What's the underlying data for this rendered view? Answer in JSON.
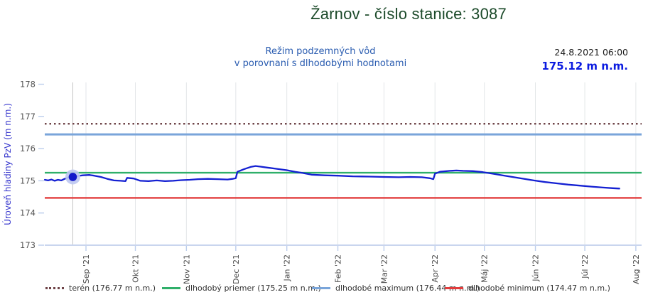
{
  "header": {
    "title": "Žarnov - číslo stanice: 3087",
    "subtitle_line1": "Režim podzemných vôd",
    "subtitle_line2": "v porovnaní s dlhodobými hodnotami",
    "selected_date": "24.8.2021 06:00",
    "selected_value": "175.12 m n.m."
  },
  "chart_data": {
    "type": "line",
    "title": "Žarnov - číslo stanice: 3087",
    "xlabel": "",
    "ylabel": "Úroveň hladiny PzV (m n.m.)",
    "ylim": [
      173,
      178
    ],
    "grid": "vertical-monthly",
    "legend_position": "bottom",
    "y_ticks": [
      173,
      174,
      175,
      176,
      177,
      178
    ],
    "x_ticks": [
      {
        "label": "Sep '21",
        "date": "2021-09-01"
      },
      {
        "label": "Okt '21",
        "date": "2021-10-01"
      },
      {
        "label": "Nov '21",
        "date": "2021-11-01"
      },
      {
        "label": "Dec '21",
        "date": "2021-12-01"
      },
      {
        "label": "Jan '22",
        "date": "2022-01-01"
      },
      {
        "label": "Feb '22",
        "date": "2022-02-01"
      },
      {
        "label": "Mar '22",
        "date": "2022-03-01"
      },
      {
        "label": "Apr '22",
        "date": "2022-04-01"
      },
      {
        "label": "Máj '22",
        "date": "2022-05-01"
      },
      {
        "label": "Jún '22",
        "date": "2022-06-01"
      },
      {
        "label": "Júl '22",
        "date": "2022-07-01"
      },
      {
        "label": "Aug '22",
        "date": "2022-08-01"
      }
    ],
    "reference_lines": [
      {
        "name": "terén",
        "value": 176.77,
        "color": "#6E4347",
        "style": "dotted",
        "label": "terén (176.77 m n.m.)"
      },
      {
        "name": "dlhodobý priemer",
        "value": 175.25,
        "color": "#2FAF6A",
        "style": "solid",
        "label": "dlhodobý priemer (175.25 m n.m.)"
      },
      {
        "name": "dlhodobé maximum",
        "value": 176.44,
        "color": "#7AA5DA",
        "style": "solid",
        "label": "dlhodobé maximum (176.44 m n.m.)"
      },
      {
        "name": "dlhodobé minimum",
        "value": 174.47,
        "color": "#E23C3C",
        "style": "solid",
        "label": "dlhodobé minimum (174.47 m n.m.)"
      }
    ],
    "selected_point": {
      "date": "2021-08-24",
      "time": "06:00",
      "value": 175.12,
      "date_label": "24.8.2021 06:00",
      "value_label": "175.12 m n.m."
    },
    "series": [
      {
        "name": "úroveň hladiny PzV",
        "color": "#1420D2",
        "points": [
          [
            "2021-08-07",
            175.03
          ],
          [
            "2021-08-09",
            175.01
          ],
          [
            "2021-08-11",
            175.04
          ],
          [
            "2021-08-13",
            175.0
          ],
          [
            "2021-08-15",
            175.03
          ],
          [
            "2021-08-17",
            175.01
          ],
          [
            "2021-08-19",
            175.06
          ],
          [
            "2021-08-21",
            175.1
          ],
          [
            "2021-08-24",
            175.12
          ],
          [
            "2021-08-27",
            175.15
          ],
          [
            "2021-08-30",
            175.17
          ],
          [
            "2021-09-03",
            175.18
          ],
          [
            "2021-09-06",
            175.16
          ],
          [
            "2021-09-10",
            175.12
          ],
          [
            "2021-09-14",
            175.06
          ],
          [
            "2021-09-18",
            175.01
          ],
          [
            "2021-09-22",
            175.0
          ],
          [
            "2021-09-25",
            174.99
          ],
          [
            "2021-09-26",
            175.09
          ],
          [
            "2021-09-30",
            175.07
          ],
          [
            "2021-10-04",
            175.0
          ],
          [
            "2021-10-09",
            174.99
          ],
          [
            "2021-10-14",
            175.01
          ],
          [
            "2021-10-19",
            174.99
          ],
          [
            "2021-10-24",
            175.0
          ],
          [
            "2021-10-29",
            175.02
          ],
          [
            "2021-11-03",
            175.03
          ],
          [
            "2021-11-08",
            175.05
          ],
          [
            "2021-11-14",
            175.06
          ],
          [
            "2021-11-20",
            175.05
          ],
          [
            "2021-11-26",
            175.04
          ],
          [
            "2021-11-29",
            175.06
          ],
          [
            "2021-12-01",
            175.08
          ],
          [
            "2021-12-02",
            175.28
          ],
          [
            "2021-12-06",
            175.36
          ],
          [
            "2021-12-10",
            175.43
          ],
          [
            "2021-12-13",
            175.46
          ],
          [
            "2021-12-16",
            175.44
          ],
          [
            "2021-12-20",
            175.41
          ],
          [
            "2021-12-26",
            175.37
          ],
          [
            "2022-01-01",
            175.33
          ],
          [
            "2022-01-06",
            175.28
          ],
          [
            "2022-01-10",
            175.25
          ],
          [
            "2022-01-16",
            175.19
          ],
          [
            "2022-01-24",
            175.17
          ],
          [
            "2022-02-01",
            175.16
          ],
          [
            "2022-02-10",
            175.14
          ],
          [
            "2022-02-20",
            175.13
          ],
          [
            "2022-03-01",
            175.12
          ],
          [
            "2022-03-10",
            175.11
          ],
          [
            "2022-03-17",
            175.12
          ],
          [
            "2022-03-24",
            175.11
          ],
          [
            "2022-03-29",
            175.08
          ],
          [
            "2022-03-31",
            175.05
          ],
          [
            "2022-04-01",
            175.22
          ],
          [
            "2022-04-04",
            175.28
          ],
          [
            "2022-04-10",
            175.31
          ],
          [
            "2022-04-14",
            175.32
          ],
          [
            "2022-04-18",
            175.31
          ],
          [
            "2022-04-24",
            175.3
          ],
          [
            "2022-04-30",
            175.27
          ],
          [
            "2022-05-06",
            175.22
          ],
          [
            "2022-05-12",
            175.17
          ],
          [
            "2022-05-18",
            175.12
          ],
          [
            "2022-05-24",
            175.07
          ],
          [
            "2022-05-31",
            175.01
          ],
          [
            "2022-06-07",
            174.96
          ],
          [
            "2022-06-14",
            174.92
          ],
          [
            "2022-06-21",
            174.88
          ],
          [
            "2022-06-28",
            174.85
          ],
          [
            "2022-07-05",
            174.82
          ],
          [
            "2022-07-12",
            174.79
          ],
          [
            "2022-07-18",
            174.77
          ],
          [
            "2022-07-22",
            174.76
          ]
        ]
      }
    ]
  },
  "colors": {
    "title": "#1C4A2A",
    "subtitle": "#2A5CB0",
    "selected_value": "#0B1BE0",
    "y_axis_title": "#3535CD",
    "series_line": "#1420D2",
    "marker_fill": "#1117C9",
    "marker_halo": "#BCC6F1",
    "gridline": "#E3E6E8",
    "crosshair": "#C4C4C4",
    "axis_line": "#C9D5EE",
    "tick_dash": "#BCCEEC",
    "tick_label": "#4A4A4A"
  }
}
